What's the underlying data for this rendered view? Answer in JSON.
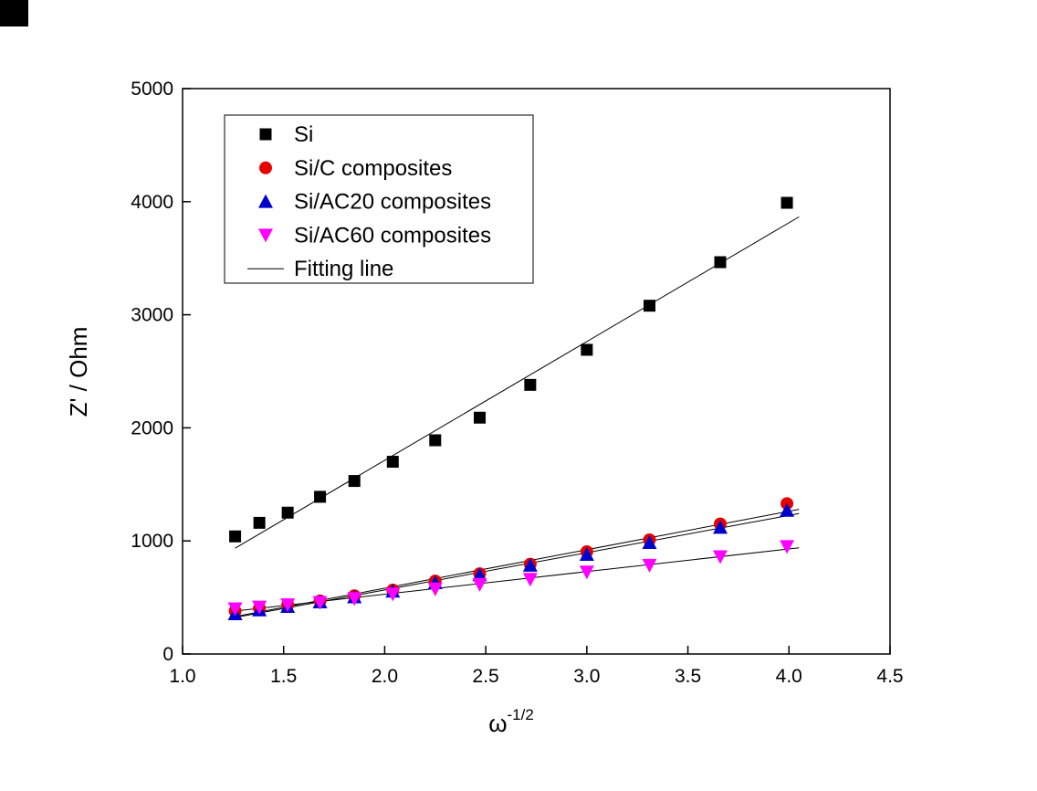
{
  "chart_data": {
    "type": "scatter",
    "title": "",
    "xlabel": "ω^-1/2",
    "xlabel_base": "ω",
    "xlabel_exp": "-1/2",
    "ylabel": "Z' / Ohm",
    "xlim": [
      1.0,
      4.5
    ],
    "ylim": [
      0,
      5000
    ],
    "xticks": [
      1.0,
      1.5,
      2.0,
      2.5,
      3.0,
      3.5,
      4.0,
      4.5
    ],
    "xtick_labels": [
      "1.0",
      "1.5",
      "2.0",
      "2.5",
      "3.0",
      "3.5",
      "4.0",
      "4.5"
    ],
    "yticks": [
      0,
      1000,
      2000,
      3000,
      4000,
      5000
    ],
    "ytick_labels": [
      "0",
      "1000",
      "2000",
      "3000",
      "4000",
      "5000"
    ],
    "grid": false,
    "legend_position": "top-left",
    "fitting_line_label": "Fitting line",
    "x": [
      1.26,
      1.38,
      1.52,
      1.68,
      1.85,
      2.04,
      2.25,
      2.47,
      2.72,
      3.0,
      3.31,
      3.66,
      3.99
    ],
    "series": [
      {
        "name": "Si",
        "marker": "square",
        "color": "#000000",
        "values": [
          1040,
          1160,
          1250,
          1390,
          1530,
          1700,
          1890,
          2090,
          2380,
          2690,
          3080,
          3465,
          3990
        ]
      },
      {
        "name": "Si/C composites",
        "marker": "circle",
        "color": "#e60000",
        "values": [
          380,
          405,
          435,
          470,
          515,
          565,
          645,
          710,
          795,
          905,
          1010,
          1150,
          1330
        ]
      },
      {
        "name": "Si/AC20 composites",
        "marker": "triangle-up",
        "color": "#0000cc",
        "values": [
          355,
          390,
          420,
          460,
          505,
          555,
          630,
          700,
          785,
          880,
          985,
          1120,
          1270
        ]
      },
      {
        "name": "Si/AC60 composites",
        "marker": "triangle-down",
        "color": "#ff00ff",
        "values": [
          400,
          415,
          435,
          455,
          490,
          530,
          575,
          615,
          660,
          725,
          785,
          860,
          950
        ]
      }
    ]
  }
}
